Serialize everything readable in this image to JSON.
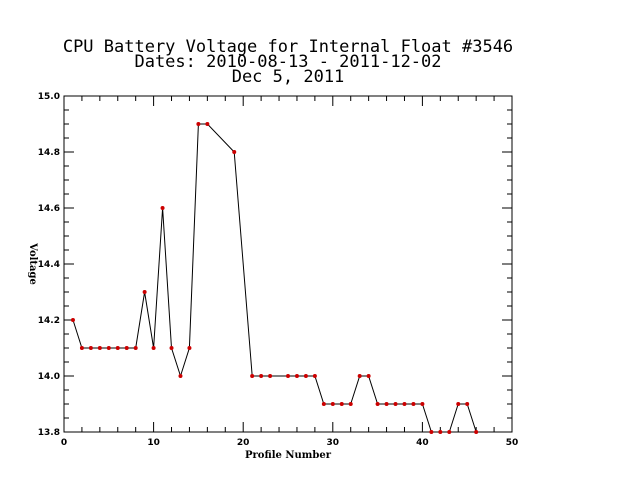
{
  "chart_data": {
    "type": "line",
    "title_lines": [
      "CPU Battery Voltage for Internal Float #3546",
      "Dates:  2010-08-13 -  2011-12-02",
      "Dec  5, 2011"
    ],
    "xlabel": "Profile Number",
    "ylabel": "Voltage",
    "xlim": [
      0,
      50
    ],
    "ylim": [
      13.8,
      15.0
    ],
    "xticks": [
      "0",
      "10",
      "20",
      "30",
      "40",
      "50"
    ],
    "yticks": [
      "13.8",
      "14.0",
      "14.2",
      "14.4",
      "14.6",
      "14.8",
      "15.0"
    ],
    "grid": false,
    "line_color": "#000000",
    "marker_color": "#cc0000",
    "series": [
      {
        "x": [
          1,
          2,
          3,
          4,
          5,
          6,
          7,
          8,
          9,
          10,
          11,
          12,
          13,
          14,
          15,
          16,
          19,
          21,
          22,
          23,
          25,
          26,
          27,
          28,
          29,
          30,
          31,
          32,
          33,
          34,
          35,
          36,
          37,
          38,
          39,
          40,
          41,
          42,
          43,
          44,
          45,
          46
        ],
        "y": [
          14.2,
          14.1,
          14.1,
          14.1,
          14.1,
          14.1,
          14.1,
          14.1,
          14.3,
          14.1,
          14.6,
          14.1,
          14.0,
          14.1,
          14.9,
          14.9,
          14.8,
          14.0,
          14.0,
          14.0,
          14.0,
          14.0,
          14.0,
          14.0,
          13.9,
          13.9,
          13.9,
          13.9,
          14.0,
          14.0,
          13.9,
          13.9,
          13.9,
          13.9,
          13.9,
          13.9,
          13.8,
          13.8,
          13.8,
          13.9,
          13.9,
          13.8
        ]
      }
    ]
  }
}
